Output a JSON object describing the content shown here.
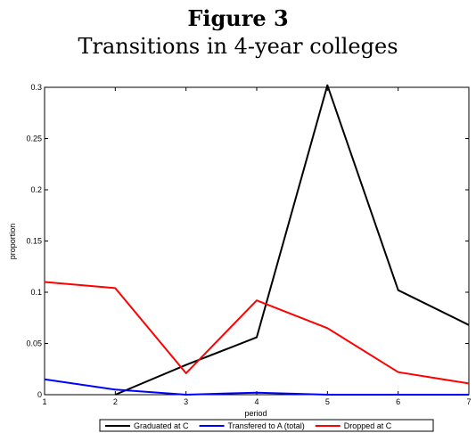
{
  "figure": {
    "label": "Figure 3",
    "caption": "Transitions in 4-year colleges"
  },
  "chart_data": {
    "type": "line",
    "title": "",
    "xlabel": "period",
    "ylabel": "proportion",
    "x": [
      1,
      2,
      3,
      4,
      5,
      6,
      7
    ],
    "xlim": [
      1,
      7
    ],
    "ylim": [
      0,
      0.3
    ],
    "xticks": [
      "1",
      "2",
      "3",
      "4",
      "5",
      "6",
      "7"
    ],
    "yticks": [
      {
        "value": 0,
        "label": "0"
      },
      {
        "value": 0.05,
        "label": "0.05"
      },
      {
        "value": 0.1,
        "label": "0.1"
      },
      {
        "value": 0.15,
        "label": "0.15"
      },
      {
        "value": 0.2,
        "label": "0.2"
      },
      {
        "value": 0.25,
        "label": "0.25"
      },
      {
        "value": 0.3,
        "label": "0.3"
      }
    ],
    "grid": false,
    "legend_position": "bottom",
    "series": [
      {
        "name": "Graduated at C",
        "color": "#000000",
        "points": [
          [
            2,
            0.0
          ],
          [
            3,
            0.029
          ],
          [
            4,
            0.056
          ],
          [
            5,
            0.302
          ],
          [
            6,
            0.102
          ],
          [
            7,
            0.068
          ]
        ]
      },
      {
        "name": "Transfered to A (total)",
        "color": "#0000ff",
        "points": [
          [
            1,
            0.015
          ],
          [
            2,
            0.005
          ],
          [
            3,
            0.0
          ],
          [
            4,
            0.002
          ],
          [
            5,
            0.0
          ],
          [
            6,
            0.0
          ],
          [
            7,
            0.0
          ]
        ]
      },
      {
        "name": "Dropped at C",
        "color": "#ff0000",
        "points": [
          [
            1,
            0.11
          ],
          [
            2,
            0.104
          ],
          [
            3,
            0.021
          ],
          [
            4,
            0.092
          ],
          [
            5,
            0.065
          ],
          [
            6,
            0.022
          ],
          [
            7,
            0.011
          ]
        ]
      }
    ]
  }
}
